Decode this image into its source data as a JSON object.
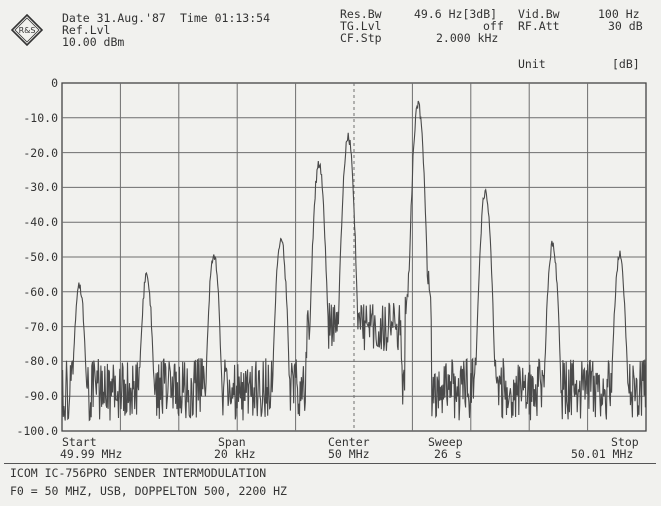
{
  "header": {
    "date": "Date 31.Aug.'87",
    "time": "Time 01:13:54",
    "ref_lvl_label": "Ref.Lvl",
    "ref_lvl_value": "10.00 dBm",
    "res_bw_label": "Res.Bw",
    "res_bw_value": "49.6 Hz[3dB]",
    "tg_lvl_label": "TG.Lvl",
    "tg_lvl_value": "off",
    "cf_stp_label": "CF.Stp",
    "cf_stp_value": "2.000 kHz",
    "vid_bw_label": "Vid.Bw",
    "vid_bw_value": "100 Hz",
    "rf_att_label": "RF.Att",
    "rf_att_value": "30 dB",
    "unit_label": "Unit",
    "unit_value": "[dB]"
  },
  "y_ticks": [
    "0",
    "-10.0",
    "-20.0",
    "-30.0",
    "-40.0",
    "-50.0",
    "-60.0",
    "-70.0",
    "-80.0",
    "-90.0",
    "-100.0"
  ],
  "bottom": {
    "start_label": "Start",
    "start_value": "49.99 MHz",
    "span_label": "Span",
    "span_value": "20 kHz",
    "center_label": "Center",
    "center_value": "50 MHz",
    "sweep_label": "Sweep",
    "sweep_value": "26 s",
    "stop_label": "Stop",
    "stop_value": "50.01 MHz"
  },
  "footer": {
    "line1": "ICOM IC-756PRO SENDER INTERMODULATION",
    "line2": "F0 = 50 MHZ, USB, DOPPELTON 500, 2200 HZ"
  },
  "colors": {
    "trace": "#4a4a4a",
    "grid": "#6e6e6e",
    "background": "#f1f1ee"
  },
  "chart_data": {
    "type": "line",
    "xlabel": "",
    "ylabel": "",
    "xlim": [
      49.99,
      50.01
    ],
    "ylim": [
      -100,
      0
    ],
    "peaks": {
      "x_mhz": [
        49.9906,
        49.9929,
        49.9952,
        49.9975,
        49.9988,
        49.9998,
        50.0022,
        50.0045,
        50.0068,
        50.0091
      ],
      "level_db": [
        -57,
        -54,
        -48,
        -43,
        -22,
        -14,
        -5,
        -30,
        -45,
        -48
      ]
    },
    "noise_floor_db": -88
  }
}
